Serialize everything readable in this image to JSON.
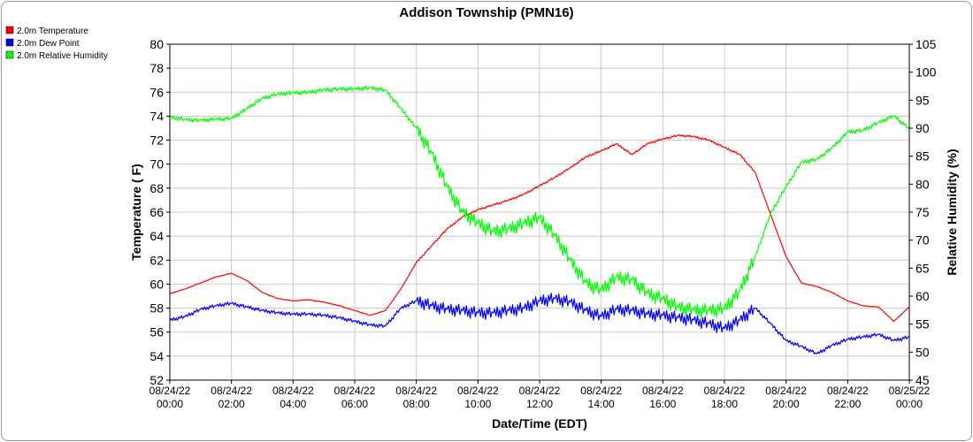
{
  "chart_data": {
    "type": "line",
    "title": "Addison Township (PMN16)",
    "xlabel": "Date/Time (EDT)",
    "ylabel_left": "Temperature ( F)",
    "ylabel_right": "Relative Humidity (%)",
    "ylim_left": [
      52,
      80
    ],
    "ylim_right": [
      45,
      105
    ],
    "yticks_left": [
      52,
      54,
      56,
      58,
      60,
      62,
      64,
      66,
      68,
      70,
      72,
      74,
      76,
      78,
      80
    ],
    "yticks_right": [
      45,
      50,
      55,
      60,
      65,
      70,
      75,
      80,
      85,
      90,
      95,
      100,
      105
    ],
    "xticks": [
      {
        "date": "08/24/22",
        "time": "00:00"
      },
      {
        "date": "08/24/22",
        "time": "02:00"
      },
      {
        "date": "08/24/22",
        "time": "04:00"
      },
      {
        "date": "08/24/22",
        "time": "06:00"
      },
      {
        "date": "08/24/22",
        "time": "08:00"
      },
      {
        "date": "08/24/22",
        "time": "10:00"
      },
      {
        "date": "08/24/22",
        "time": "12:00"
      },
      {
        "date": "08/24/22",
        "time": "14:00"
      },
      {
        "date": "08/24/22",
        "time": "16:00"
      },
      {
        "date": "08/24/22",
        "time": "18:00"
      },
      {
        "date": "08/24/22",
        "time": "20:00"
      },
      {
        "date": "08/24/22",
        "time": "22:00"
      },
      {
        "date": "08/25/22",
        "time": "00:00"
      }
    ],
    "grid": true,
    "legend_position": "top-left",
    "series": [
      {
        "name": "2.0m Temperature",
        "axis": "left",
        "color": "#ff0000",
        "x": [
          "00:00",
          "00:30",
          "01:00",
          "01:30",
          "02:00",
          "02:30",
          "03:00",
          "03:30",
          "04:00",
          "04:30",
          "05:00",
          "05:30",
          "06:00",
          "06:30",
          "07:00",
          "07:30",
          "08:00",
          "08:30",
          "09:00",
          "09:30",
          "10:00",
          "10:30",
          "11:00",
          "11:30",
          "12:00",
          "12:30",
          "13:00",
          "13:30",
          "14:00",
          "14:30",
          "15:00",
          "15:30",
          "16:00",
          "16:30",
          "17:00",
          "17:30",
          "18:00",
          "18:30",
          "19:00",
          "19:30",
          "20:00",
          "20:30",
          "21:00",
          "21:30",
          "22:00",
          "22:30",
          "23:00",
          "23:30",
          "24:00"
        ],
        "values": [
          59.2,
          59.6,
          60.1,
          60.6,
          60.9,
          60.3,
          59.3,
          58.8,
          58.6,
          58.7,
          58.5,
          58.2,
          57.8,
          57.4,
          57.8,
          59.6,
          61.8,
          63.2,
          64.6,
          65.6,
          66.2,
          66.6,
          67.0,
          67.5,
          68.2,
          68.9,
          69.7,
          70.6,
          71.1,
          71.7,
          70.8,
          71.7,
          72.1,
          72.4,
          72.3,
          72.0,
          71.4,
          70.8,
          69.3,
          65.8,
          62.3,
          60.1,
          59.8,
          59.3,
          58.6,
          58.2,
          58.1,
          56.9,
          58.1
        ]
      },
      {
        "name": "2.0m Dew Point",
        "axis": "left",
        "color": "#0000ff",
        "x": [
          "00:00",
          "00:30",
          "01:00",
          "01:30",
          "02:00",
          "02:30",
          "03:00",
          "03:30",
          "04:00",
          "04:30",
          "05:00",
          "05:30",
          "06:00",
          "06:30",
          "07:00",
          "07:30",
          "08:00",
          "08:30",
          "09:00",
          "09:30",
          "10:00",
          "10:30",
          "11:00",
          "11:30",
          "12:00",
          "12:30",
          "13:00",
          "13:30",
          "14:00",
          "14:30",
          "15:00",
          "15:30",
          "16:00",
          "16:30",
          "17:00",
          "17:30",
          "18:00",
          "18:30",
          "19:00",
          "19:30",
          "20:00",
          "20:30",
          "21:00",
          "21:30",
          "22:00",
          "22:30",
          "23:00",
          "23:30",
          "24:00"
        ],
        "values": [
          57.0,
          57.3,
          57.9,
          58.2,
          58.4,
          58.1,
          57.8,
          57.6,
          57.5,
          57.5,
          57.4,
          57.2,
          56.9,
          56.6,
          56.5,
          58.0,
          58.6,
          58.2,
          57.9,
          57.8,
          57.6,
          57.6,
          57.8,
          58.0,
          58.6,
          58.8,
          58.5,
          57.8,
          57.3,
          57.9,
          57.8,
          57.5,
          57.4,
          57.2,
          57.0,
          56.7,
          56.3,
          57.0,
          58.0,
          56.7,
          55.3,
          54.8,
          54.2,
          54.9,
          55.4,
          55.6,
          55.8,
          55.3,
          55.6
        ]
      },
      {
        "name": "2.0m Relative Humidity",
        "axis": "right",
        "color": "#00ff00",
        "x": [
          "00:00",
          "00:30",
          "01:00",
          "01:30",
          "02:00",
          "02:30",
          "03:00",
          "03:30",
          "04:00",
          "04:30",
          "05:00",
          "05:30",
          "06:00",
          "06:30",
          "07:00",
          "07:30",
          "08:00",
          "08:30",
          "09:00",
          "09:30",
          "10:00",
          "10:30",
          "11:00",
          "11:30",
          "12:00",
          "12:30",
          "13:00",
          "13:30",
          "14:00",
          "14:30",
          "15:00",
          "15:30",
          "16:00",
          "16:30",
          "17:00",
          "17:30",
          "18:00",
          "18:30",
          "19:00",
          "19:30",
          "20:00",
          "20:30",
          "21:00",
          "21:30",
          "22:00",
          "22:30",
          "23:00",
          "23:30",
          "24:00"
        ],
        "values": [
          92.0,
          91.5,
          91.4,
          91.6,
          91.7,
          93.5,
          95.3,
          96.1,
          96.3,
          96.4,
          96.8,
          97.0,
          97.0,
          97.2,
          96.8,
          93.5,
          90.0,
          85.5,
          79.5,
          75.0,
          73.0,
          71.5,
          72.0,
          73.0,
          74.0,
          70.8,
          66.4,
          62.4,
          61.0,
          63.4,
          62.9,
          60.5,
          59.5,
          58.0,
          57.5,
          57.4,
          57.7,
          60.9,
          67.0,
          74.8,
          79.5,
          83.9,
          84.4,
          86.5,
          89.3,
          89.6,
          91.0,
          92.2,
          89.9
        ]
      }
    ]
  }
}
